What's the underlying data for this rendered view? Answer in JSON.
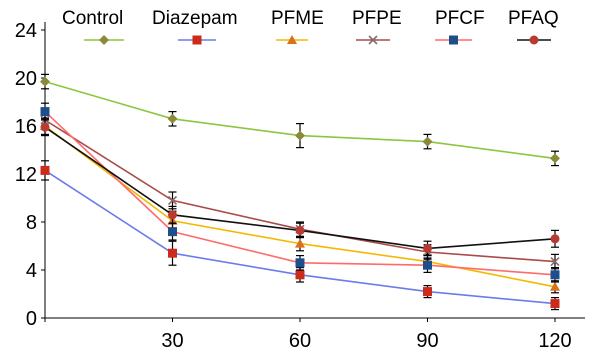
{
  "chart_data": {
    "type": "line",
    "x": [
      0,
      30,
      60,
      90,
      120
    ],
    "x_ticks": [
      "30",
      "60",
      "90",
      "120"
    ],
    "y_ticks": [
      "0",
      "4",
      "8",
      "12",
      "16",
      "20",
      "24"
    ],
    "ylim": [
      0,
      24
    ],
    "xlim": [
      0,
      120
    ],
    "title": "",
    "xlabel": "",
    "ylabel": "",
    "grid": false,
    "legend_position": "top",
    "series": [
      {
        "name": "Control",
        "color": "#8cc63f",
        "marker": "diamond",
        "marker_color": "#8a8a3a",
        "values": [
          19.7,
          16.6,
          15.2,
          14.7,
          13.3
        ],
        "errors": [
          0.6,
          0.6,
          1.0,
          0.6,
          0.6
        ]
      },
      {
        "name": "Diazepam",
        "color": "#6b7bea",
        "marker": "square",
        "marker_color": "#cc2a1a",
        "values": [
          12.3,
          5.4,
          3.6,
          2.2,
          1.2
        ],
        "errors": [
          0.8,
          1.0,
          0.6,
          0.5,
          0.5
        ]
      },
      {
        "name": "PFME",
        "color": "#f5b800",
        "marker": "triangle",
        "marker_color": "#d9731a",
        "values": [
          16.0,
          8.1,
          6.2,
          4.7,
          2.6
        ],
        "errors": [
          0.7,
          0.8,
          0.6,
          0.6,
          0.5
        ]
      },
      {
        "name": "PFPE",
        "color": "#a94b4b",
        "marker": "cross",
        "marker_color": "#8a6b6b",
        "values": [
          16.5,
          9.8,
          7.4,
          5.5,
          4.7
        ],
        "errors": [
          0.7,
          0.7,
          0.6,
          0.6,
          0.6
        ]
      },
      {
        "name": "PFCF",
        "color": "#ff6b6b",
        "marker": "square",
        "marker_color": "#1f4e8c",
        "values": [
          17.2,
          7.2,
          4.6,
          4.4,
          3.6
        ],
        "errors": [
          0.7,
          0.7,
          0.6,
          0.6,
          0.6
        ]
      },
      {
        "name": "PFAQ",
        "color": "#111111",
        "marker": "circle",
        "marker_color": "#b83b33",
        "values": [
          15.9,
          8.6,
          7.3,
          5.8,
          6.6
        ],
        "errors": [
          0.7,
          0.7,
          0.6,
          0.6,
          0.7
        ]
      }
    ]
  }
}
